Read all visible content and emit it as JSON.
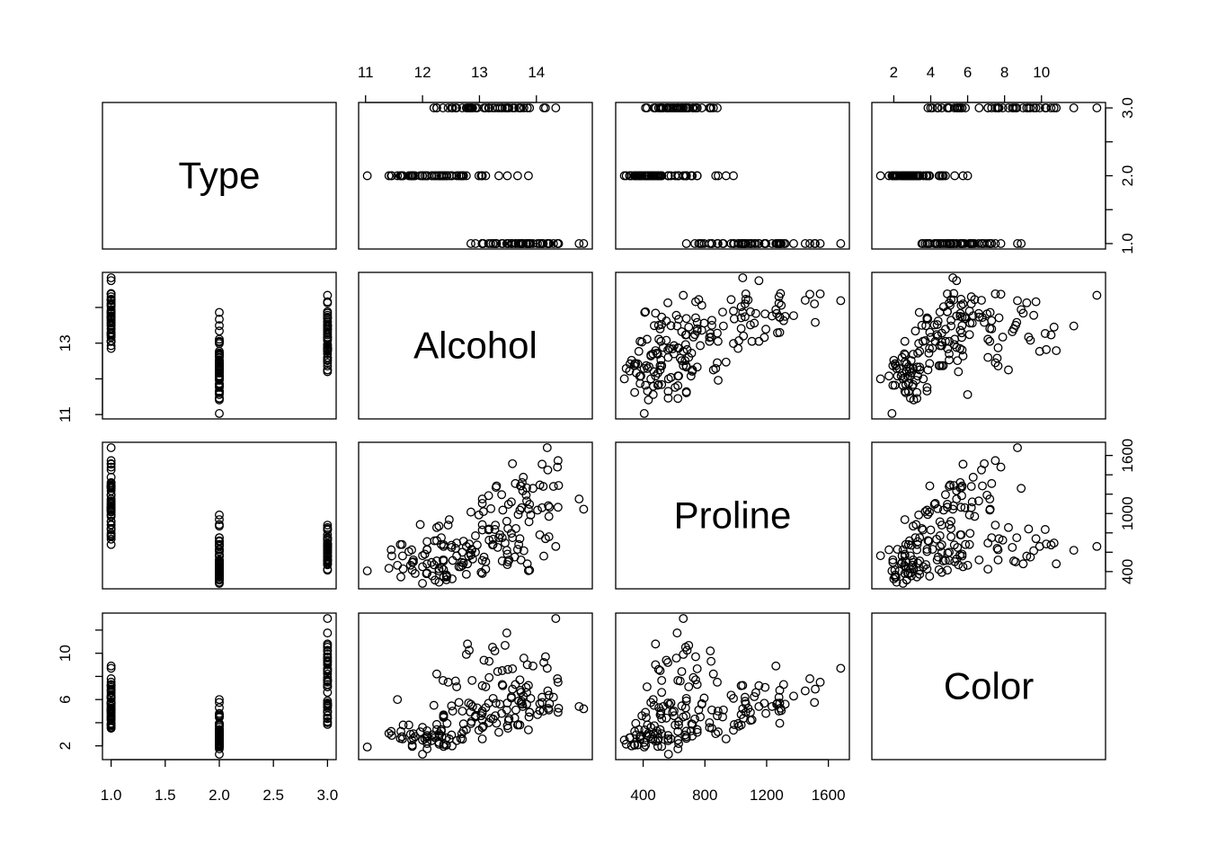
{
  "chart_data": {
    "type": "scatter",
    "variables": [
      "Type",
      "Alcohol",
      "Proline",
      "Color"
    ],
    "ranges": {
      "Type": [
        1,
        3
      ],
      "Alcohol": [
        11.03,
        14.83
      ],
      "Proline": [
        278,
        1680
      ],
      "Color": [
        1.28,
        13.0
      ]
    },
    "ticks": {
      "Type": {
        "values": [
          1.0,
          1.5,
          2.0,
          2.5,
          3.0
        ],
        "labels": [
          "1.0",
          "1.5",
          "2.0",
          "2.5",
          "3.0"
        ]
      },
      "Type_right": {
        "values": [
          1.0,
          2.0,
          3.0
        ],
        "labels": [
          "1.0",
          "2.0",
          "3.0"
        ]
      },
      "Alcohol_top": {
        "values": [
          11,
          12,
          13,
          14
        ],
        "labels": [
          "11",
          "12",
          "13",
          "14"
        ]
      },
      "Alcohol_left": {
        "values": [
          11,
          13
        ],
        "labels": [
          "11",
          "13"
        ]
      },
      "Proline_bottom": {
        "values": [
          400,
          800,
          1200,
          1600
        ],
        "labels": [
          "400",
          "800",
          "1200",
          "1600"
        ]
      },
      "Proline_right": {
        "values": [
          400,
          1000,
          1600
        ],
        "labels": [
          "400",
          "1000",
          "1600"
        ]
      },
      "Color_top": {
        "values": [
          2,
          4,
          6,
          8,
          10
        ],
        "labels": [
          "2",
          "4",
          "6",
          "8",
          "10"
        ]
      },
      "Color_left": {
        "values": [
          2,
          6,
          10
        ],
        "labels": [
          "2",
          "6",
          "10"
        ]
      }
    },
    "observations": [
      [
        1,
        14.23,
        1065,
        5.64
      ],
      [
        1,
        13.2,
        1050,
        4.38
      ],
      [
        1,
        13.16,
        1185,
        5.68
      ],
      [
        1,
        14.37,
        1480,
        7.8
      ],
      [
        1,
        13.24,
        735,
        4.32
      ],
      [
        1,
        14.2,
        1450,
        6.75
      ],
      [
        1,
        14.39,
        1290,
        5.25
      ],
      [
        1,
        14.06,
        1295,
        5.05
      ],
      [
        1,
        14.83,
        1045,
        5.2
      ],
      [
        1,
        13.86,
        1045,
        7.22
      ],
      [
        1,
        14.1,
        1510,
        5.75
      ],
      [
        1,
        14.12,
        1280,
        5.0
      ],
      [
        1,
        13.75,
        1320,
        5.6
      ],
      [
        1,
        14.75,
        1150,
        5.4
      ],
      [
        1,
        14.38,
        1547,
        7.5
      ],
      [
        1,
        13.63,
        1310,
        7.3
      ],
      [
        1,
        14.3,
        1280,
        6.2
      ],
      [
        1,
        13.83,
        1130,
        6.6
      ],
      [
        1,
        14.19,
        1680,
        8.7
      ],
      [
        1,
        13.64,
        845,
        5.1
      ],
      [
        1,
        14.06,
        780,
        5.65
      ],
      [
        1,
        12.93,
        770,
        4.5
      ],
      [
        1,
        13.71,
        1035,
        3.8
      ],
      [
        1,
        12.85,
        1015,
        3.93
      ],
      [
        1,
        13.5,
        845,
        3.52
      ],
      [
        1,
        13.05,
        830,
        3.58
      ],
      [
        1,
        13.39,
        1195,
        4.8
      ],
      [
        1,
        13.3,
        1285,
        3.95
      ],
      [
        1,
        13.87,
        915,
        4.5
      ],
      [
        1,
        14.02,
        1035,
        4.7
      ],
      [
        1,
        13.73,
        1285,
        5.7
      ],
      [
        1,
        13.58,
        1515,
        6.9
      ],
      [
        1,
        13.68,
        990,
        3.84
      ],
      [
        1,
        13.76,
        1235,
        5.4
      ],
      [
        1,
        13.51,
        1095,
        4.2
      ],
      [
        1,
        13.48,
        920,
        5.1
      ],
      [
        1,
        13.28,
        880,
        4.6
      ],
      [
        1,
        13.05,
        1105,
        4.25
      ],
      [
        1,
        13.07,
        1020,
        3.7
      ],
      [
        1,
        14.22,
        760,
        5.1
      ],
      [
        1,
        13.56,
        795,
        6.13
      ],
      [
        1,
        13.41,
        1035,
        7.2
      ],
      [
        1,
        13.88,
        1095,
        4.9
      ],
      [
        1,
        13.24,
        680,
        6.1
      ],
      [
        1,
        13.05,
        885,
        5.0
      ],
      [
        1,
        14.21,
        1080,
        5.24
      ],
      [
        1,
        14.38,
        1065,
        4.9
      ],
      [
        1,
        13.9,
        985,
        6.1
      ],
      [
        1,
        14.1,
        1060,
        6.2
      ],
      [
        1,
        13.94,
        1260,
        8.9
      ],
      [
        1,
        13.05,
        1150,
        7.2
      ],
      [
        1,
        13.83,
        1265,
        5.6
      ],
      [
        1,
        13.82,
        1190,
        7.05
      ],
      [
        1,
        13.77,
        1375,
        6.3
      ],
      [
        1,
        13.74,
        1060,
        5.85
      ],
      [
        1,
        13.56,
        1120,
        6.25
      ],
      [
        1,
        14.22,
        970,
        6.38
      ],
      [
        1,
        13.29,
        1270,
        5.68
      ],
      [
        1,
        13.72,
        1285,
        6.8
      ],
      [
        2,
        12.37,
        520,
        1.95
      ],
      [
        2,
        12.33,
        680,
        3.27
      ],
      [
        2,
        12.64,
        450,
        5.75
      ],
      [
        2,
        13.67,
        630,
        3.8
      ],
      [
        2,
        12.37,
        420,
        4.45
      ],
      [
        2,
        12.17,
        355,
        2.95
      ],
      [
        2,
        12.37,
        678,
        4.6
      ],
      [
        2,
        13.11,
        502,
        5.3
      ],
      [
        2,
        12.37,
        510,
        4.68
      ],
      [
        2,
        13.34,
        750,
        3.17
      ],
      [
        2,
        12.21,
        718,
        2.85
      ],
      [
        2,
        12.29,
        870,
        3.05
      ],
      [
        2,
        13.86,
        410,
        3.38
      ],
      [
        2,
        13.49,
        472,
        3.74
      ],
      [
        2,
        12.99,
        985,
        3.35
      ],
      [
        2,
        11.96,
        886,
        3.21
      ],
      [
        2,
        11.66,
        428,
        3.8
      ],
      [
        2,
        13.03,
        392,
        4.6
      ],
      [
        2,
        11.84,
        500,
        2.65
      ],
      [
        2,
        12.33,
        750,
        3.4
      ],
      [
        2,
        12.7,
        463,
        2.57
      ],
      [
        2,
        12.0,
        278,
        2.5
      ],
      [
        2,
        12.72,
        714,
        3.9
      ],
      [
        2,
        12.08,
        630,
        2.2
      ],
      [
        2,
        13.05,
        515,
        4.8
      ],
      [
        2,
        11.84,
        520,
        3.05
      ],
      [
        2,
        12.67,
        450,
        2.62
      ],
      [
        2,
        12.16,
        495,
        2.45
      ],
      [
        2,
        11.65,
        562,
        2.6
      ],
      [
        2,
        11.64,
        680,
        2.8
      ],
      [
        2,
        12.08,
        625,
        1.74
      ],
      [
        2,
        12.08,
        480,
        2.4
      ],
      [
        2,
        12.0,
        450,
        3.6
      ],
      [
        2,
        12.69,
        495,
        3.05
      ],
      [
        2,
        12.29,
        290,
        2.15
      ],
      [
        2,
        11.62,
        345,
        3.25
      ],
      [
        2,
        12.47,
        937,
        2.6
      ],
      [
        2,
        11.81,
        625,
        2.5
      ],
      [
        2,
        12.29,
        428,
        2.9
      ],
      [
        2,
        12.37,
        660,
        4.5
      ],
      [
        2,
        12.29,
        406,
        2.3
      ],
      [
        2,
        12.08,
        710,
        3.3
      ],
      [
        2,
        12.6,
        562,
        2.45
      ],
      [
        2,
        12.34,
        438,
        2.8
      ],
      [
        2,
        11.82,
        415,
        2.06
      ],
      [
        2,
        12.51,
        672,
        2.94
      ],
      [
        2,
        12.42,
        315,
        2.7
      ],
      [
        2,
        12.25,
        510,
        3.4
      ],
      [
        2,
        12.72,
        488,
        3.3
      ],
      [
        2,
        12.22,
        312,
        2.7
      ],
      [
        2,
        11.61,
        680,
        2.65
      ],
      [
        2,
        11.46,
        562,
        2.9
      ],
      [
        2,
        12.52,
        325,
        2.0
      ],
      [
        2,
        11.76,
        607,
        3.8
      ],
      [
        2,
        11.41,
        434,
        3.08
      ],
      [
        2,
        12.08,
        385,
        2.9
      ],
      [
        2,
        11.03,
        407,
        1.9
      ],
      [
        2,
        11.82,
        495,
        1.95
      ],
      [
        2,
        12.42,
        345,
        2.06
      ],
      [
        2,
        12.77,
        372,
        3.4
      ],
      [
        2,
        12.0,
        564,
        1.28
      ],
      [
        2,
        11.45,
        625,
        3.25
      ],
      [
        2,
        11.56,
        465,
        6.0
      ],
      [
        2,
        12.42,
        365,
        2.08
      ],
      [
        2,
        13.05,
        380,
        2.6
      ],
      [
        2,
        11.87,
        380,
        2.8
      ],
      [
        2,
        12.07,
        378,
        2.76
      ],
      [
        2,
        12.43,
        352,
        3.94
      ],
      [
        2,
        11.79,
        466,
        3.0
      ],
      [
        2,
        12.37,
        342,
        2.12
      ],
      [
        2,
        12.04,
        580,
        2.6
      ],
      [
        3,
        12.86,
        630,
        4.1
      ],
      [
        3,
        12.88,
        530,
        5.4
      ],
      [
        3,
        12.81,
        560,
        5.7
      ],
      [
        3,
        12.7,
        600,
        5.0
      ],
      [
        3,
        12.51,
        650,
        5.45
      ],
      [
        3,
        12.6,
        695,
        7.1
      ],
      [
        3,
        12.25,
        720,
        3.85
      ],
      [
        3,
        12.53,
        515,
        5.0
      ],
      [
        3,
        13.49,
        580,
        5.7
      ],
      [
        3,
        12.84,
        590,
        4.92
      ],
      [
        3,
        12.93,
        600,
        4.6
      ],
      [
        3,
        13.36,
        780,
        5.6
      ],
      [
        3,
        13.52,
        520,
        4.35
      ],
      [
        3,
        13.62,
        550,
        4.4
      ],
      [
        3,
        12.25,
        855,
        8.21
      ],
      [
        3,
        13.16,
        830,
        4.0
      ],
      [
        3,
        13.88,
        415,
        4.9
      ],
      [
        3,
        12.87,
        625,
        7.65
      ],
      [
        3,
        13.32,
        650,
        8.42
      ],
      [
        3,
        13.08,
        550,
        9.4
      ],
      [
        3,
        13.5,
        500,
        8.6
      ],
      [
        3,
        12.79,
        480,
        10.8
      ],
      [
        3,
        13.11,
        425,
        7.1
      ],
      [
        3,
        13.23,
        675,
        10.52
      ],
      [
        3,
        12.58,
        640,
        7.6
      ],
      [
        3,
        13.17,
        725,
        7.9
      ],
      [
        3,
        13.84,
        480,
        9.01
      ],
      [
        3,
        12.45,
        880,
        7.5
      ],
      [
        3,
        14.34,
        660,
        13.0
      ],
      [
        3,
        13.48,
        620,
        11.75
      ],
      [
        3,
        12.36,
        520,
        7.65
      ],
      [
        3,
        13.69,
        680,
        5.88
      ],
      [
        3,
        12.85,
        570,
        5.58
      ],
      [
        3,
        12.96,
        675,
        5.28
      ],
      [
        3,
        13.78,
        615,
        9.58
      ],
      [
        3,
        13.73,
        520,
        6.62
      ],
      [
        3,
        13.45,
        695,
        10.68
      ],
      [
        3,
        12.82,
        685,
        10.26
      ],
      [
        3,
        13.58,
        750,
        8.66
      ],
      [
        3,
        13.4,
        510,
        8.5
      ],
      [
        3,
        12.2,
        470,
        5.5
      ],
      [
        3,
        12.77,
        660,
        9.9
      ],
      [
        3,
        14.16,
        740,
        9.7
      ],
      [
        3,
        13.71,
        740,
        7.7
      ],
      [
        3,
        13.4,
        750,
        7.3
      ],
      [
        3,
        13.27,
        835,
        10.2
      ],
      [
        3,
        13.17,
        840,
        9.3
      ],
      [
        3,
        14.13,
        560,
        9.2
      ]
    ]
  }
}
